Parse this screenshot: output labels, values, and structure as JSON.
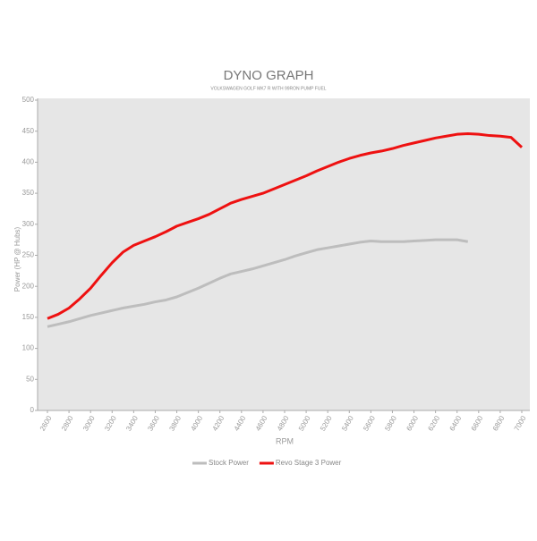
{
  "chart_data": {
    "type": "line",
    "title": "DYNO GRAPH",
    "subtitle": "VOLKSWAGEN GOLF MK7 R WITH 99RON PUMP FUEL",
    "x_label": "RPM",
    "y_label": "Power (HP @ Hubs)",
    "x": [
      2600,
      2700,
      2800,
      2900,
      3000,
      3100,
      3200,
      3300,
      3400,
      3500,
      3600,
      3700,
      3800,
      3900,
      4000,
      4100,
      4200,
      4300,
      4400,
      4500,
      4600,
      4700,
      4800,
      4900,
      5000,
      5100,
      5200,
      5300,
      5400,
      5500,
      5600,
      5700,
      5800,
      5900,
      6000,
      6100,
      6200,
      6300,
      6400,
      6500,
      6600,
      6700,
      6800,
      6900,
      7000
    ],
    "series": [
      {
        "name": "Stock Power",
        "color": "#bdbdbd",
        "values": [
          135,
          139,
          143,
          148,
          153,
          157,
          161,
          165,
          168,
          171,
          175,
          178,
          183,
          190,
          197,
          205,
          213,
          220,
          224,
          228,
          233,
          238,
          243,
          249,
          254,
          259,
          262,
          265,
          268,
          271,
          273,
          272,
          272,
          272,
          273,
          274,
          275,
          275,
          275,
          272,
          null,
          null,
          null,
          null,
          null
        ]
      },
      {
        "name": "Revo Stage 3 Power",
        "color": "#ee1111",
        "values": [
          148,
          155,
          165,
          180,
          197,
          218,
          238,
          255,
          266,
          273,
          280,
          288,
          297,
          303,
          309,
          316,
          325,
          334,
          340,
          345,
          350,
          357,
          364,
          371,
          378,
          386,
          393,
          400,
          406,
          411,
          415,
          418,
          422,
          427,
          431,
          435,
          439,
          442,
          445,
          446,
          445,
          443,
          442,
          440,
          424
        ]
      }
    ],
    "xlim": [
      2600,
      7000
    ],
    "xticks": [
      2600,
      2800,
      3000,
      3200,
      3400,
      3600,
      3800,
      4000,
      4200,
      4400,
      4600,
      4800,
      5000,
      5200,
      5400,
      5600,
      5800,
      6000,
      6200,
      6400,
      6600,
      6800,
      7000
    ],
    "ylim": [
      0,
      500
    ],
    "yticks": [
      0,
      50,
      100,
      150,
      200,
      250,
      300,
      350,
      400,
      450,
      500
    ],
    "grid": false,
    "legend": "bottom"
  }
}
